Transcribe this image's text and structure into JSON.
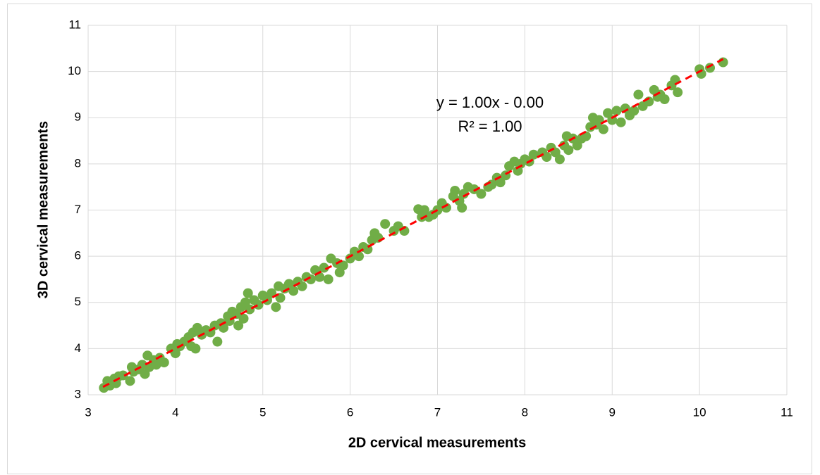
{
  "chart_data": {
    "type": "scatter",
    "x_label": "2D cervical measurements",
    "y_label": "3D cervical measurements",
    "xlim": [
      3,
      11
    ],
    "ylim": [
      3,
      11
    ],
    "xticks": [
      3,
      4,
      5,
      6,
      7,
      8,
      9,
      10,
      11
    ],
    "yticks": [
      3,
      4,
      5,
      6,
      7,
      8,
      9,
      10,
      11
    ],
    "grid": true,
    "annotations": [
      "y = 1.00x - 0.00",
      "R² = 1.00"
    ],
    "series": [
      {
        "color": "#70ad47",
        "x": [
          3.18,
          3.22,
          3.25,
          3.3,
          3.32,
          3.35,
          3.4,
          3.48,
          3.5,
          3.52,
          3.58,
          3.62,
          3.65,
          3.68,
          3.7,
          3.75,
          3.78,
          3.82,
          3.87,
          3.95,
          4.0,
          4.02,
          4.05,
          4.1,
          4.15,
          4.18,
          4.2,
          4.23,
          4.25,
          4.3,
          4.35,
          4.4,
          4.45,
          4.48,
          4.52,
          4.55,
          4.6,
          4.62,
          4.65,
          4.7,
          4.72,
          4.75,
          4.78,
          4.8,
          4.83,
          4.85,
          4.9,
          4.95,
          5.0,
          5.05,
          5.1,
          5.15,
          5.18,
          5.2,
          5.25,
          5.3,
          5.35,
          5.4,
          5.45,
          5.5,
          5.55,
          5.6,
          5.65,
          5.7,
          5.75,
          5.78,
          5.85,
          5.88,
          5.92,
          6.0,
          6.05,
          6.1,
          6.15,
          6.2,
          6.25,
          6.28,
          6.32,
          6.4,
          6.5,
          6.55,
          6.62,
          6.78,
          6.82,
          6.85,
          6.9,
          6.95,
          7.0,
          7.05,
          7.1,
          7.18,
          7.2,
          7.25,
          7.28,
          7.3,
          7.35,
          7.42,
          7.5,
          7.58,
          7.62,
          7.68,
          7.72,
          7.78,
          7.82,
          7.88,
          7.92,
          7.95,
          8.0,
          8.05,
          8.1,
          8.2,
          8.25,
          8.3,
          8.35,
          8.4,
          8.45,
          8.48,
          8.5,
          8.55,
          8.6,
          8.65,
          8.7,
          8.75,
          8.78,
          8.82,
          8.85,
          8.9,
          8.95,
          9.0,
          9.05,
          9.1,
          9.15,
          9.2,
          9.25,
          9.3,
          9.35,
          9.42,
          9.48,
          9.52,
          9.55,
          9.6,
          9.68,
          9.72,
          9.75,
          10.0,
          10.02,
          10.12,
          10.27
        ],
        "values": [
          3.15,
          3.3,
          3.2,
          3.35,
          3.25,
          3.4,
          3.42,
          3.3,
          3.6,
          3.5,
          3.55,
          3.65,
          3.45,
          3.85,
          3.6,
          3.75,
          3.65,
          3.8,
          3.7,
          4.0,
          3.9,
          4.1,
          4.05,
          4.15,
          4.25,
          4.05,
          4.35,
          4.0,
          4.45,
          4.3,
          4.4,
          4.35,
          4.5,
          4.15,
          4.55,
          4.45,
          4.7,
          4.6,
          4.8,
          4.75,
          4.5,
          4.9,
          4.65,
          5.0,
          5.2,
          4.85,
          5.05,
          4.95,
          5.15,
          5.05,
          5.2,
          4.9,
          5.35,
          5.1,
          5.3,
          5.4,
          5.25,
          5.45,
          5.35,
          5.55,
          5.5,
          5.7,
          5.55,
          5.75,
          5.5,
          5.95,
          5.85,
          5.65,
          5.8,
          5.95,
          6.1,
          6.0,
          6.2,
          6.15,
          6.35,
          6.5,
          6.4,
          6.7,
          6.55,
          6.65,
          6.55,
          7.02,
          6.85,
          7.0,
          6.85,
          6.9,
          7.0,
          7.15,
          7.05,
          7.3,
          7.42,
          7.2,
          7.05,
          7.35,
          7.5,
          7.45,
          7.35,
          7.5,
          7.55,
          7.7,
          7.6,
          7.75,
          7.95,
          8.05,
          7.85,
          8.0,
          8.1,
          8.05,
          8.2,
          8.25,
          8.15,
          8.35,
          8.25,
          8.1,
          8.4,
          8.6,
          8.3,
          8.55,
          8.4,
          8.55,
          8.6,
          8.8,
          9.0,
          8.85,
          8.95,
          8.75,
          9.1,
          8.95,
          9.15,
          8.9,
          9.2,
          9.05,
          9.15,
          9.5,
          9.25,
          9.35,
          9.6,
          9.45,
          9.5,
          9.4,
          9.7,
          9.82,
          9.55,
          10.05,
          9.95,
          10.08,
          10.2
        ]
      }
    ],
    "trendline": {
      "color": "#ff0000",
      "x": [
        3.17,
        10.27
      ],
      "values": [
        3.17,
        10.27
      ]
    }
  }
}
